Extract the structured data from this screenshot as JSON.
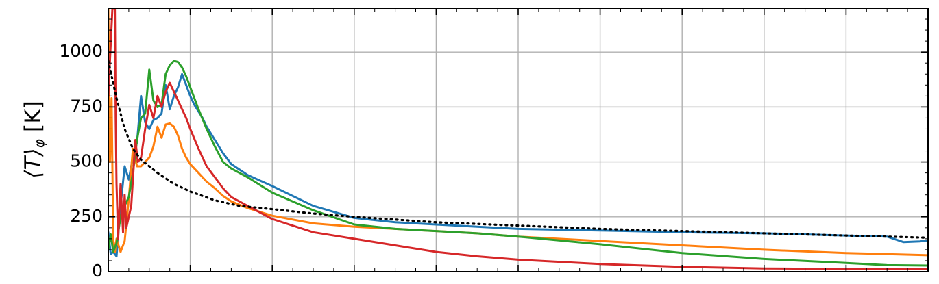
{
  "chart_data": {
    "type": "line",
    "title": "",
    "ylabel": "⟨T⟩",
    "ylabel_sub": "φ",
    "ylabel_unit": "[K]",
    "xlabel": "",
    "xlim": [
      0,
      1
    ],
    "ylim": [
      0,
      1200
    ],
    "yticks": [
      0,
      250,
      500,
      750,
      1000
    ],
    "yticklabels": [
      "0",
      "250",
      "500",
      "750",
      "1000"
    ],
    "xticks_major": [
      0,
      0.1,
      0.2,
      0.3,
      0.4,
      0.5,
      0.6,
      0.7,
      0.8,
      0.9,
      1.0
    ],
    "grid": true,
    "legend": "none",
    "series": [
      {
        "color": "#1f77b4",
        "x": [
          0.0,
          0.003,
          0.006,
          0.01,
          0.015,
          0.02,
          0.025,
          0.03,
          0.035,
          0.04,
          0.045,
          0.05,
          0.055,
          0.06,
          0.065,
          0.07,
          0.075,
          0.08,
          0.085,
          0.09,
          0.095,
          0.1,
          0.105,
          0.11,
          0.115,
          0.12,
          0.13,
          0.14,
          0.15,
          0.17,
          0.2,
          0.25,
          0.3,
          0.35,
          0.4,
          0.45,
          0.5,
          0.6,
          0.7,
          0.8,
          0.9,
          0.95,
          0.97,
          0.99,
          1.0
        ],
        "y": [
          180,
          80,
          90,
          70,
          300,
          480,
          420,
          520,
          590,
          800,
          680,
          650,
          690,
          700,
          720,
          850,
          740,
          800,
          840,
          900,
          850,
          800,
          760,
          730,
          700,
          660,
          600,
          540,
          490,
          440,
          390,
          300,
          245,
          225,
          215,
          205,
          195,
          188,
          180,
          175,
          165,
          160,
          135,
          138,
          142
        ]
      },
      {
        "color": "#ff7f0e",
        "x": [
          0.0,
          0.002,
          0.004,
          0.006,
          0.008,
          0.01,
          0.015,
          0.02,
          0.025,
          0.03,
          0.035,
          0.04,
          0.045,
          0.05,
          0.055,
          0.06,
          0.065,
          0.07,
          0.075,
          0.08,
          0.085,
          0.09,
          0.095,
          0.1,
          0.11,
          0.12,
          0.13,
          0.14,
          0.15,
          0.17,
          0.2,
          0.25,
          0.3,
          0.35,
          0.4,
          0.45,
          0.5,
          0.6,
          0.7,
          0.8,
          0.9,
          1.0
        ],
        "y": [
          1200,
          500,
          790,
          150,
          90,
          150,
          90,
          140,
          330,
          560,
          480,
          480,
          500,
          520,
          570,
          660,
          610,
          670,
          675,
          660,
          620,
          560,
          520,
          490,
          450,
          410,
          380,
          345,
          320,
          290,
          255,
          220,
          205,
          195,
          185,
          175,
          160,
          140,
          120,
          100,
          85,
          75
        ]
      },
      {
        "color": "#2ca02c",
        "x": [
          0.0,
          0.003,
          0.006,
          0.01,
          0.015,
          0.02,
          0.025,
          0.03,
          0.035,
          0.04,
          0.045,
          0.05,
          0.055,
          0.06,
          0.065,
          0.07,
          0.075,
          0.08,
          0.085,
          0.09,
          0.095,
          0.1,
          0.105,
          0.11,
          0.12,
          0.13,
          0.14,
          0.15,
          0.17,
          0.2,
          0.25,
          0.3,
          0.35,
          0.4,
          0.45,
          0.5,
          0.6,
          0.7,
          0.8,
          0.9,
          0.95,
          1.0
        ],
        "y": [
          100,
          170,
          90,
          130,
          250,
          300,
          340,
          450,
          600,
          700,
          720,
          920,
          780,
          750,
          760,
          900,
          940,
          960,
          955,
          930,
          890,
          840,
          790,
          740,
          650,
          570,
          500,
          470,
          430,
          360,
          280,
          215,
          195,
          185,
          175,
          160,
          125,
          85,
          58,
          40,
          30,
          28
        ]
      },
      {
        "color": "#d62728",
        "x": [
          0.0,
          0.005,
          0.008,
          0.009,
          0.01,
          0.012,
          0.015,
          0.018,
          0.02,
          0.022,
          0.025,
          0.028,
          0.03,
          0.033,
          0.036,
          0.04,
          0.045,
          0.05,
          0.055,
          0.06,
          0.065,
          0.07,
          0.075,
          0.08,
          0.085,
          0.09,
          0.095,
          0.1,
          0.11,
          0.12,
          0.13,
          0.14,
          0.15,
          0.17,
          0.2,
          0.25,
          0.3,
          0.35,
          0.4,
          0.45,
          0.5,
          0.6,
          0.7,
          0.8,
          0.9,
          1.0
        ],
        "y": [
          800,
          1200,
          1200,
          700,
          400,
          150,
          400,
          180,
          350,
          200,
          250,
          300,
          420,
          600,
          500,
          520,
          650,
          760,
          700,
          800,
          750,
          820,
          860,
          820,
          780,
          740,
          700,
          650,
          560,
          480,
          430,
          380,
          340,
          300,
          240,
          180,
          150,
          120,
          90,
          70,
          55,
          35,
          22,
          15,
          12,
          12
        ]
      },
      {
        "color": "#000000",
        "dashed": true,
        "x": [
          0.0,
          0.01,
          0.02,
          0.03,
          0.04,
          0.05,
          0.06,
          0.08,
          0.1,
          0.13,
          0.16,
          0.2,
          0.25,
          0.3,
          0.4,
          0.5,
          0.6,
          0.7,
          0.8,
          0.9,
          1.0
        ],
        "y": [
          960,
          790,
          650,
          560,
          510,
          480,
          450,
          400,
          365,
          325,
          300,
          285,
          265,
          250,
          225,
          210,
          195,
          185,
          175,
          165,
          155
        ]
      }
    ]
  }
}
